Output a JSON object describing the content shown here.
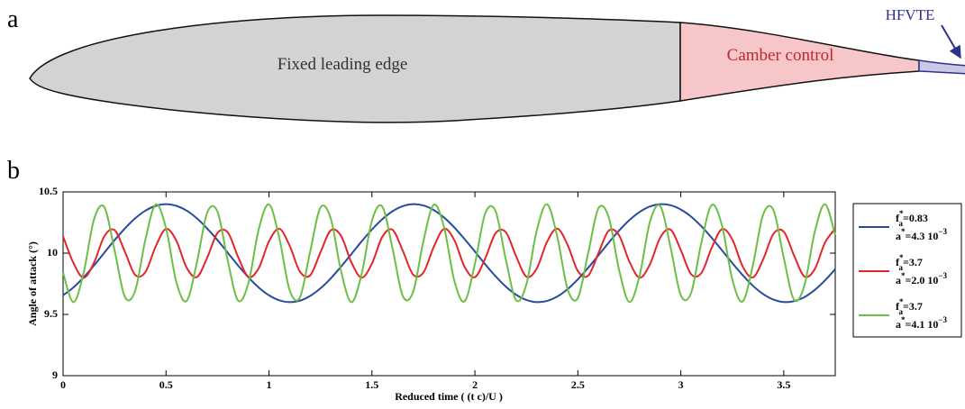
{
  "diagram": {
    "panel_label": "a",
    "regions": [
      "Fixed leading edge",
      "Camber control"
    ],
    "callout": "HFVTE"
  },
  "chart_data": {
    "type": "line",
    "panel_label": "b",
    "x_label": "Reduced time ( (t c)/U )",
    "y_label": "Angle of attack (°)",
    "x": [
      0,
      0.05,
      0.1,
      0.15,
      0.2,
      0.25,
      0.3,
      0.35,
      0.4,
      0.45,
      0.5,
      0.55,
      0.6,
      0.65,
      0.7,
      0.75,
      0.8,
      0.85,
      0.9,
      0.95,
      1,
      1.05,
      1.1,
      1.15,
      1.2,
      1.25,
      1.3,
      1.35,
      1.4,
      1.45,
      1.5,
      1.55,
      1.6,
      1.65,
      1.7,
      1.75,
      1.8,
      1.85,
      1.9,
      1.95,
      2,
      2.05,
      2.1,
      2.15,
      2.2,
      2.25,
      2.3,
      2.35,
      2.4,
      2.45,
      2.5,
      2.55,
      2.6,
      2.65,
      2.7,
      2.75,
      2.8,
      2.85,
      2.9,
      2.95,
      3,
      3.05,
      3.1,
      3.15,
      3.2,
      3.25,
      3.3,
      3.35,
      3.4,
      3.45,
      3.5,
      3.55,
      3.6,
      3.65,
      3.7,
      3.75
    ],
    "series": [
      {
        "name": {
          "symbol": "f",
          "sup": "*",
          "sub": "a",
          "value": "=0.83"
        },
        "amplitude": {
          "symbol": "a",
          "sup": "*",
          "value": "=4.3 10",
          "exponent": "−3"
        },
        "color": "#2a4b9b",
        "values": [
          9.656,
          9.72,
          9.803,
          9.899,
          10.003,
          10.106,
          10.201,
          10.284,
          10.347,
          10.386,
          10.4,
          10.386,
          10.347,
          10.284,
          10.201,
          10.106,
          10.003,
          9.899,
          9.803,
          9.72,
          9.656,
          9.615,
          9.6,
          9.612,
          9.651,
          9.713,
          9.794,
          9.89,
          9.992,
          10.096,
          10.193,
          10.277,
          10.342,
          10.384,
          10.4,
          10.389,
          10.352,
          10.291,
          10.21,
          10.115,
          10.013,
          9.909,
          9.812,
          9.727,
          9.661,
          9.618,
          9.6,
          9.61,
          9.646,
          9.706,
          9.786,
          9.88,
          9.982,
          10.086,
          10.184,
          10.269,
          10.336,
          10.381,
          10.399,
          10.391,
          10.356,
          10.298,
          10.219,
          10.125,
          10.023,
          9.919,
          9.821,
          9.734,
          9.666,
          9.621,
          9.601,
          9.608,
          9.641,
          9.699,
          9.777,
          9.87
        ]
      },
      {
        "name": {
          "symbol": "f",
          "sup": "*",
          "sub": "a",
          "value": "=3.7"
        },
        "amplitude": {
          "symbol": "a",
          "sup": "*",
          "value": "=2.0 10",
          "exponent": "−3"
        },
        "color": "#e2262b",
        "values": [
          10.137,
          9.921,
          9.8,
          9.921,
          10.137,
          10.188,
          10.013,
          9.822,
          9.846,
          10.056,
          10.198,
          10.102,
          9.882,
          9.805,
          9.963,
          10.165,
          10.169,
          9.969,
          9.806,
          9.877,
          10.096,
          10.199,
          10.062,
          9.85,
          9.819,
          10.006,
          10.186,
          10.141,
          9.926,
          9.8,
          9.915,
          10.132,
          10.19,
          10.019,
          9.825,
          9.842,
          10.05,
          10.198,
          10.107,
          9.888,
          9.804,
          9.956,
          10.162,
          10.172,
          9.975,
          9.808,
          9.873,
          10.091,
          10.2,
          10.068,
          9.854,
          9.816,
          10.0,
          10.184,
          10.146,
          9.932,
          9.8,
          9.909,
          10.127,
          10.192,
          10.025,
          9.828,
          9.838,
          10.044,
          10.196,
          10.112,
          9.893,
          9.802,
          9.95,
          10.158,
          10.175,
          9.981,
          9.81,
          9.868,
          10.085,
          10.2
        ]
      },
      {
        "name": {
          "symbol": "f",
          "sup": "*",
          "sub": "a",
          "value": "=3.7"
        },
        "amplitude": {
          "symbol": "a",
          "sup": "*",
          "value": "=4.1 10",
          "exponent": "−3"
        },
        "color": "#6cbf45",
        "values": [
          9.841,
          9.6,
          9.841,
          10.274,
          10.376,
          10.025,
          9.644,
          9.692,
          10.112,
          10.397,
          10.204,
          9.765,
          9.61,
          9.925,
          10.331,
          10.338,
          9.937,
          9.613,
          9.755,
          10.193,
          10.398,
          10.124,
          9.7,
          9.638,
          10.013,
          10.372,
          10.283,
          9.853,
          9.6,
          9.83,
          10.265,
          10.38,
          10.038,
          9.649,
          9.684,
          10.099,
          10.395,
          10.214,
          9.775,
          9.607,
          9.913,
          10.324,
          10.344,
          9.95,
          9.616,
          9.745,
          10.182,
          10.399,
          10.135,
          9.708,
          9.633,
          10.0,
          10.367,
          10.292,
          9.865,
          9.601,
          9.818,
          10.255,
          10.384,
          10.05,
          9.656,
          9.676,
          10.087,
          10.393,
          10.225,
          9.786,
          9.605,
          9.901,
          10.316,
          10.351,
          9.962,
          9.62,
          9.735,
          10.17,
          10.4,
          10.147
        ]
      }
    ],
    "xlim": [
      0,
      3.75
    ],
    "ylim": [
      9,
      10.5
    ],
    "xticks": [
      0,
      0.5,
      1,
      1.5,
      2,
      2.5,
      3,
      3.5
    ],
    "yticks": [
      9,
      9.5,
      10,
      10.5
    ],
    "grid": false,
    "legend": "outside-right"
  }
}
